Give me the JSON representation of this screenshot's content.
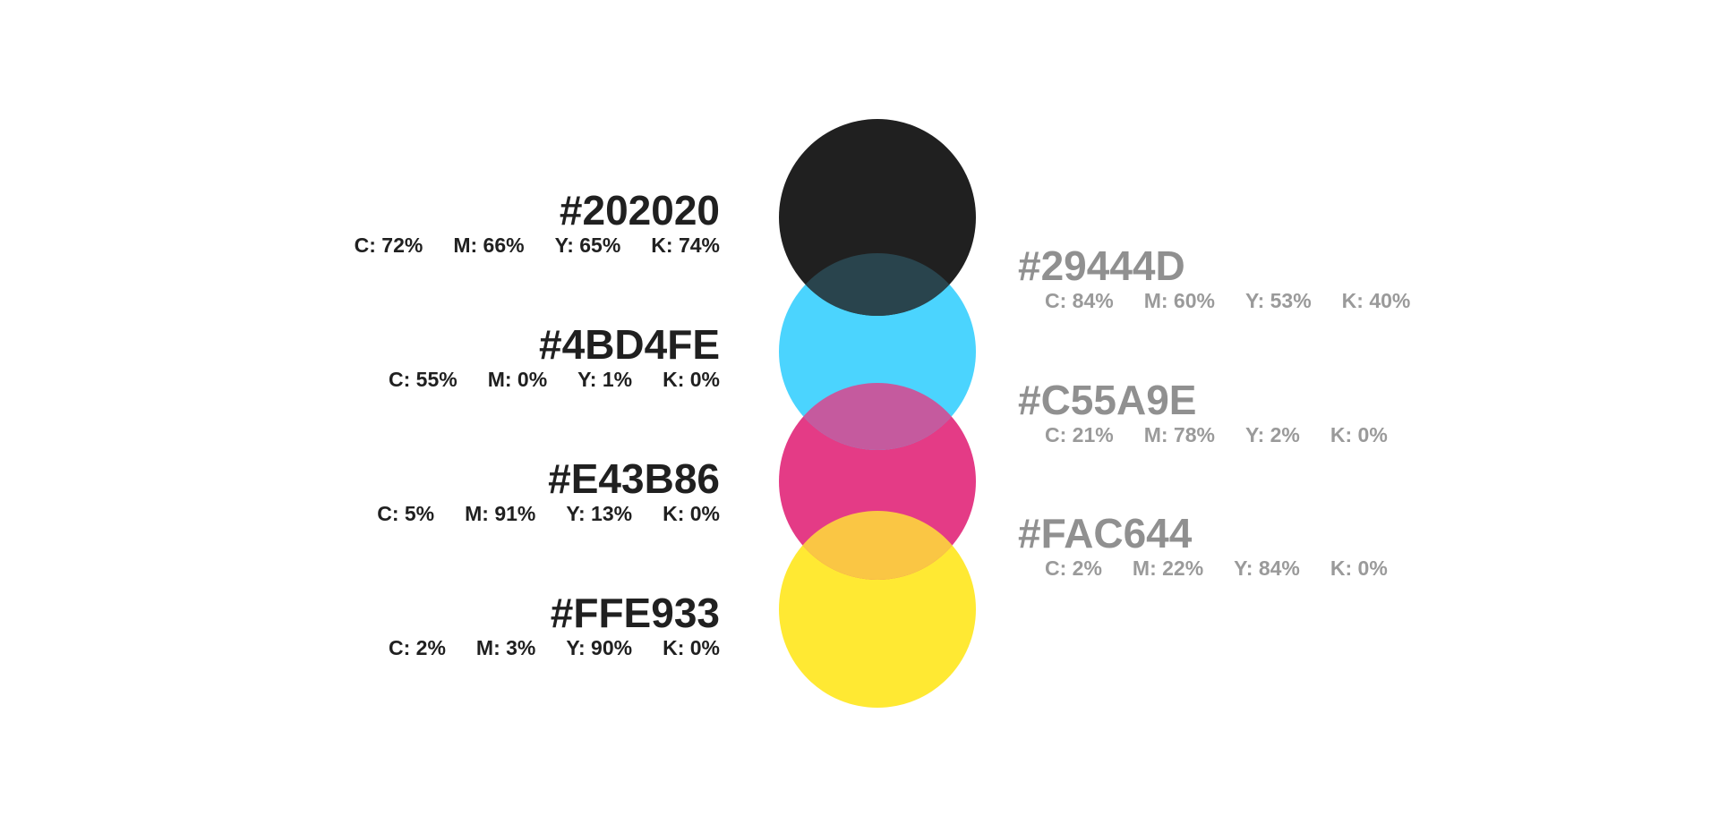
{
  "swatches": [
    {
      "hex": "#202020",
      "c": "C: 72%",
      "m": "M: 66%",
      "y": "Y: 65%",
      "k": "K: 74%",
      "color": "#202020"
    },
    {
      "hex": "#4BD4FE",
      "c": "C: 55%",
      "m": "M: 0%",
      "y": "Y: 1%",
      "k": "K: 0%",
      "color": "#4BD4FE"
    },
    {
      "hex": "#E43B86",
      "c": "C: 5%",
      "m": "M: 91%",
      "y": "Y: 13%",
      "k": "K: 0%",
      "color": "#E43B86"
    },
    {
      "hex": "#FFE933",
      "c": "C: 2%",
      "m": "M: 3%",
      "y": "Y: 90%",
      "k": "K: 0%",
      "color": "#FFE933"
    }
  ],
  "blends": [
    {
      "hex": "#29444D",
      "c": "C: 84%",
      "m": "M: 60%",
      "y": "Y: 53%",
      "k": "K: 40%",
      "color": "#29444D"
    },
    {
      "hex": "#C55A9E",
      "c": "C: 21%",
      "m": "M: 78%",
      "y": "Y: 2%",
      "k": "K: 0%",
      "color": "#C55A9E"
    },
    {
      "hex": "#FAC644",
      "c": "C: 2%",
      "m": "M: 22%",
      "y": "Y: 84%",
      "k": "K: 0%",
      "color": "#FAC644"
    }
  ]
}
